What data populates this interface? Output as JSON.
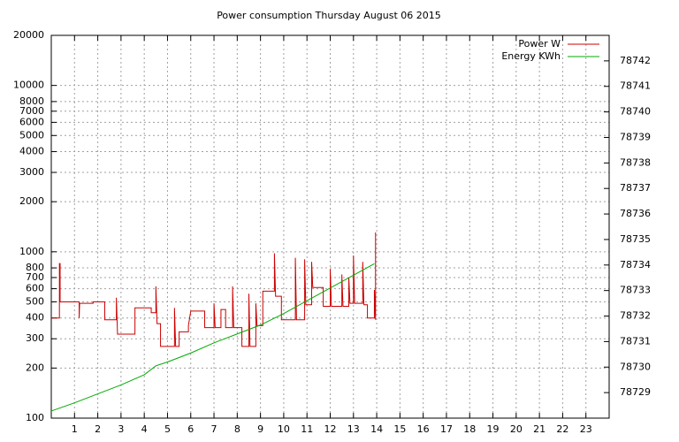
{
  "chart_data": {
    "type": "line",
    "title": "Power consumption Thursday August 06 2015",
    "xlim": [
      0,
      24
    ],
    "xticks": [
      1,
      2,
      3,
      4,
      5,
      6,
      7,
      8,
      9,
      10,
      11,
      12,
      13,
      14,
      15,
      16,
      17,
      18,
      19,
      20,
      21,
      22,
      23
    ],
    "ylim": [
      100,
      20000
    ],
    "ylog": true,
    "yticks": [
      100,
      200,
      300,
      400,
      500,
      600,
      700,
      800,
      1000,
      2000,
      3000,
      4000,
      5000,
      6000,
      7000,
      8000,
      10000,
      20000
    ],
    "y2lim": [
      78728,
      78743
    ],
    "y2ticks": [
      78729,
      78730,
      78731,
      78732,
      78733,
      78734,
      78735,
      78736,
      78737,
      78738,
      78739,
      78740,
      78741,
      78742
    ],
    "grid": true,
    "legend": "top-right",
    "series": [
      {
        "name": "Power W",
        "color": "#cc0000",
        "x": [
          0,
          0.35,
          0.35,
          0.38,
          0.38,
          1.2,
          1.2,
          1.22,
          1.8,
          1.8,
          2.3,
          2.3,
          2.8,
          2.8,
          2.85,
          3.6,
          3.6,
          4.3,
          4.3,
          4.5,
          4.5,
          4.55,
          4.7,
          4.7,
          5.3,
          5.3,
          5.35,
          5.5,
          5.5,
          5.9,
          5.9,
          6.0,
          6.6,
          6.6,
          7.0,
          7.0,
          7.05,
          7.3,
          7.3,
          7.5,
          7.5,
          7.8,
          7.8,
          7.85,
          8.2,
          8.2,
          8.5,
          8.5,
          8.55,
          8.8,
          8.8,
          8.85,
          9.1,
          9.1,
          9.6,
          9.6,
          9.65,
          9.9,
          9.9,
          10.5,
          10.5,
          10.55,
          10.9,
          10.9,
          10.95,
          11.2,
          11.2,
          11.25,
          11.7,
          11.7,
          12,
          12,
          12.05,
          12.5,
          12.5,
          12.55,
          12.8,
          12.8,
          12.85,
          13,
          13,
          13.05,
          13.4,
          13.4,
          13.45,
          13.6,
          13.6,
          13.9,
          13.9,
          13.95,
          13.95,
          13.97
        ],
        "values": [
          400,
          400,
          850,
          850,
          500,
          500,
          400,
          490,
          490,
          500,
          500,
          390,
          390,
          530,
          320,
          320,
          460,
          460,
          430,
          430,
          620,
          370,
          370,
          270,
          270,
          460,
          270,
          270,
          330,
          330,
          360,
          440,
          440,
          350,
          350,
          490,
          350,
          350,
          450,
          450,
          350,
          350,
          620,
          350,
          350,
          270,
          270,
          560,
          270,
          270,
          490,
          360,
          360,
          580,
          580,
          980,
          540,
          540,
          390,
          390,
          920,
          390,
          390,
          900,
          480,
          480,
          870,
          610,
          610,
          470,
          470,
          790,
          470,
          470,
          730,
          470,
          470,
          700,
          490,
          490,
          950,
          490,
          490,
          870,
          480,
          480,
          400,
          400,
          590,
          390,
          1300,
          1300
        ]
      },
      {
        "name": "Energy KWh",
        "color": "#00aa00",
        "axis": "y2",
        "x": [
          0,
          1,
          2,
          3,
          4,
          4.5,
          5,
          6,
          7,
          8,
          9,
          10,
          11,
          12,
          13,
          13.9
        ],
        "values": [
          78728.28,
          78728.6,
          78728.95,
          78729.3,
          78729.7,
          78730.05,
          78730.2,
          78730.55,
          78730.95,
          78731.3,
          78731.65,
          78732.1,
          78732.6,
          78733.1,
          78733.6,
          78734.05
        ]
      }
    ]
  }
}
